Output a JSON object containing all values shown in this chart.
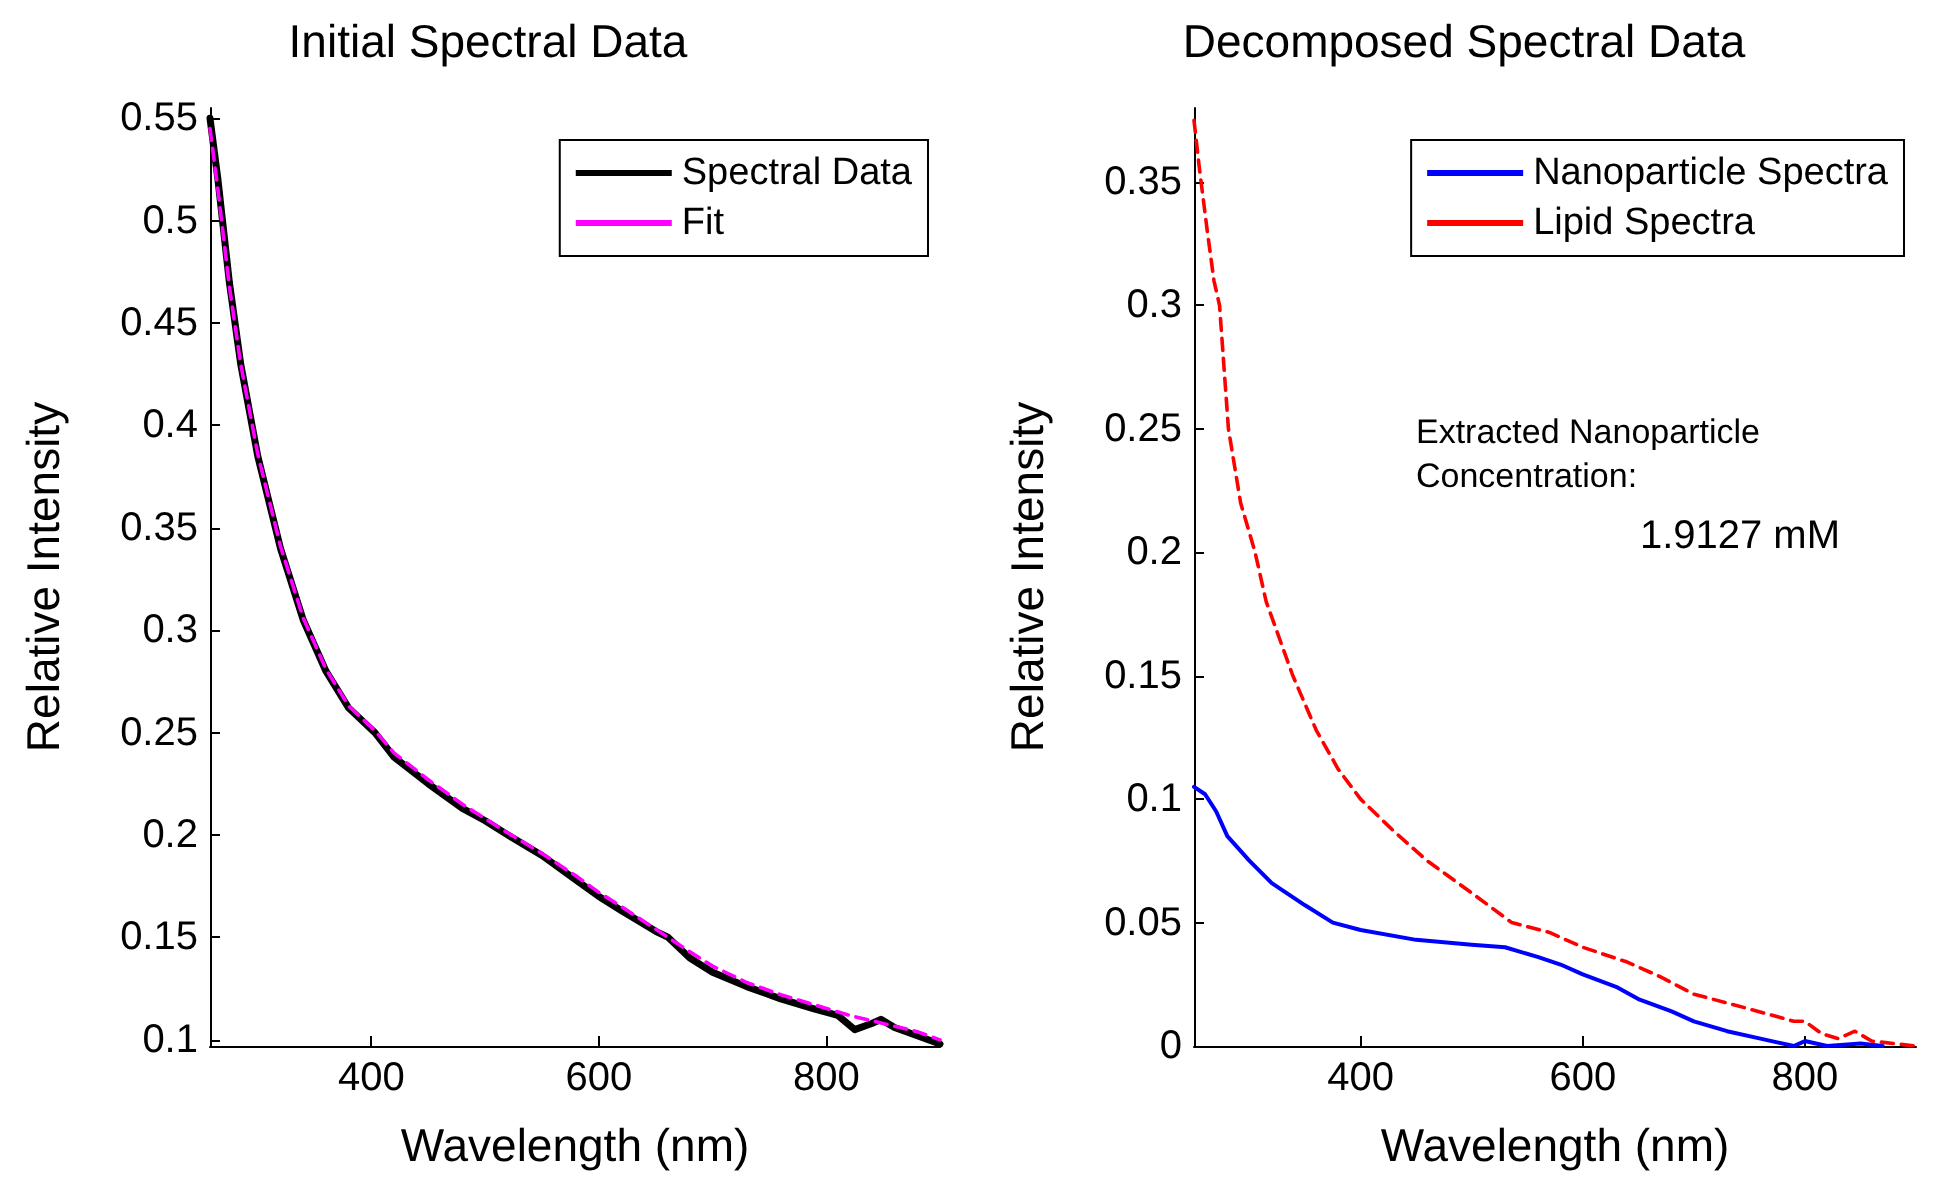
{
  "chart_data": [
    {
      "type": "line",
      "title": "Initial Spectral Data",
      "xlabel": "Wavelength (nm)",
      "ylabel": "Relative Intensity",
      "xlim": [
        258,
        900
      ],
      "ylim": [
        0.097,
        0.555
      ],
      "xticks": [
        400,
        600,
        800
      ],
      "yticks": [
        0.1,
        0.15,
        0.2,
        0.25,
        0.3,
        0.35,
        0.4,
        0.45,
        0.5,
        0.55
      ],
      "grid": false,
      "legend": "top right",
      "marker": "none",
      "series": [
        {
          "name": "Spectral Data",
          "color": "#000000",
          "line_style": "solid",
          "x": [
            258,
            265,
            275,
            285,
            300,
            320,
            340,
            360,
            380,
            403,
            420,
            450,
            480,
            500,
            520,
            550,
            580,
            600,
            620,
            650,
            661,
            680,
            700,
            730,
            760,
            790,
            810,
            825,
            840,
            848,
            860,
            880,
            900
          ],
          "values": [
            0.55,
            0.52,
            0.47,
            0.43,
            0.385,
            0.34,
            0.305,
            0.28,
            0.262,
            0.25,
            0.238,
            0.225,
            0.213,
            0.207,
            0.2,
            0.19,
            0.178,
            0.17,
            0.163,
            0.153,
            0.15,
            0.14,
            0.133,
            0.126,
            0.12,
            0.115,
            0.112,
            0.105,
            0.108,
            0.11,
            0.106,
            0.102,
            0.098
          ]
        },
        {
          "name": "Fit",
          "color": "#ff00ff",
          "line_style": "dashed",
          "x": [
            258,
            265,
            275,
            285,
            300,
            320,
            340,
            360,
            380,
            403,
            420,
            450,
            480,
            500,
            520,
            550,
            580,
            600,
            620,
            650,
            680,
            700,
            730,
            760,
            790,
            820,
            850,
            880,
            900
          ],
          "values": [
            0.545,
            0.515,
            0.468,
            0.43,
            0.386,
            0.341,
            0.306,
            0.281,
            0.263,
            0.251,
            0.24,
            0.227,
            0.215,
            0.208,
            0.201,
            0.191,
            0.18,
            0.172,
            0.165,
            0.154,
            0.143,
            0.136,
            0.128,
            0.122,
            0.117,
            0.112,
            0.108,
            0.104,
            0.1
          ]
        }
      ]
    },
    {
      "type": "line",
      "title": "Decomposed Spectral Data",
      "xlabel": "Wavelength (nm)",
      "ylabel": "Relative Intensity",
      "xlim": [
        250,
        900
      ],
      "ylim": [
        0,
        0.38
      ],
      "xticks": [
        400,
        600,
        800
      ],
      "yticks": [
        0,
        0.05,
        0.1,
        0.15,
        0.2,
        0.25,
        0.3,
        0.35
      ],
      "grid": false,
      "legend": "top right",
      "marker": "none",
      "annotations": [
        "Extracted Nanoparticle\nConcentration:",
        "1.9127 mM"
      ],
      "series": [
        {
          "name": "Nanoparticle Spectra",
          "color": "#0000ff",
          "line_style": "solid",
          "x": [
            250,
            260,
            270,
            280,
            300,
            320,
            350,
            375,
            400,
            450,
            500,
            530,
            560,
            580,
            600,
            630,
            650,
            680,
            700,
            730,
            760,
            790,
            800,
            820,
            850,
            870
          ],
          "values": [
            0.105,
            0.102,
            0.095,
            0.085,
            0.075,
            0.066,
            0.057,
            0.05,
            0.047,
            0.043,
            0.041,
            0.04,
            0.036,
            0.033,
            0.029,
            0.024,
            0.019,
            0.014,
            0.01,
            0.006,
            0.003,
            0,
            0.002,
            0,
            0.001,
            0
          ]
        },
        {
          "name": "Lipid Spectra",
          "color": "#ff0000",
          "line_style": "dashed",
          "x": [
            250,
            255,
            262,
            268,
            273,
            281,
            292,
            305,
            315,
            339,
            360,
            380,
            400,
            430,
            460,
            500,
            536,
            570,
            600,
            640,
            670,
            700,
            750,
            790,
            800,
            815,
            830,
            845,
            860,
            880,
            900
          ],
          "values": [
            0.375,
            0.355,
            0.33,
            0.31,
            0.3,
            0.25,
            0.22,
            0.2,
            0.18,
            0.15,
            0.128,
            0.112,
            0.1,
            0.087,
            0.075,
            0.062,
            0.05,
            0.046,
            0.04,
            0.034,
            0.028,
            0.021,
            0.015,
            0.01,
            0.01,
            0.005,
            0.003,
            0.006,
            0.002,
            0.001,
            0
          ]
        }
      ]
    }
  ]
}
